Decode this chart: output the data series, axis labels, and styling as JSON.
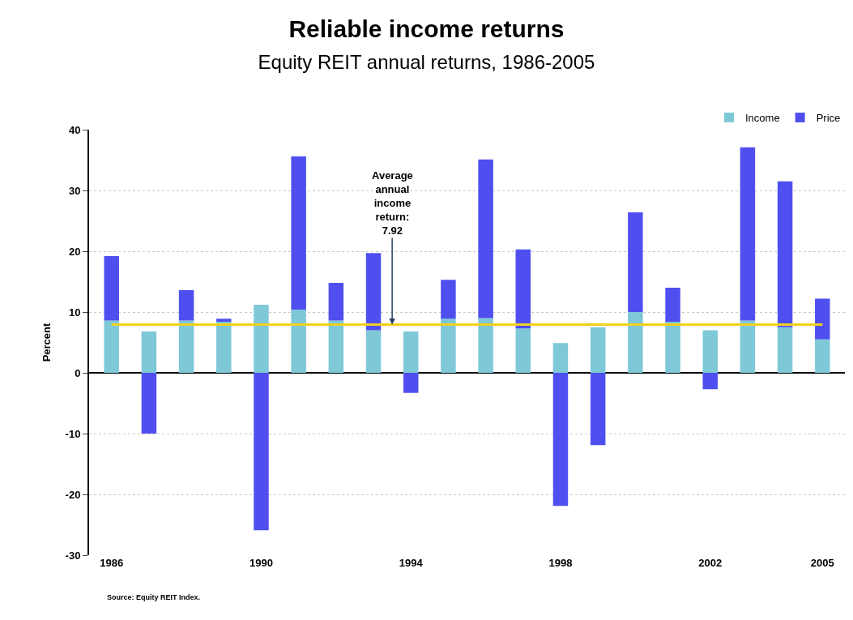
{
  "chart_data": {
    "type": "bar",
    "stacked": true,
    "title": "Reliable income returns",
    "subtitle": "Equity REIT annual returns, 1986-2005",
    "ylabel": "Percent",
    "x": [
      1986,
      1987,
      1988,
      1989,
      1990,
      1991,
      1992,
      1993,
      1994,
      1995,
      1996,
      1997,
      1998,
      1999,
      2000,
      2001,
      2002,
      2003,
      2004,
      2005
    ],
    "series": [
      {
        "name": "Income",
        "color": "#7ec8d8",
        "values": [
          8.6,
          6.8,
          8.6,
          8.4,
          11.2,
          10.4,
          8.6,
          7.0,
          6.8,
          8.9,
          9.0,
          7.3,
          4.9,
          7.5,
          10.0,
          8.4,
          7.0,
          8.6,
          7.5,
          5.5
        ]
      },
      {
        "name": "Price",
        "color": "#4f4ff0",
        "values": [
          10.6,
          -10.0,
          5.0,
          0.5,
          -25.9,
          25.2,
          6.2,
          12.7,
          -3.3,
          6.4,
          26.1,
          13.0,
          -21.9,
          -11.9,
          16.4,
          5.6,
          -2.7,
          28.5,
          24.0,
          6.7
        ]
      }
    ],
    "xlim": [
      1985.4,
      2005.6
    ],
    "xticks": [
      1986,
      1990,
      1994,
      1998,
      2002,
      2005
    ],
    "ylim": [
      -30,
      40
    ],
    "yticks": [
      -30,
      -20,
      -10,
      0,
      10,
      20,
      30,
      40
    ],
    "grid": "y",
    "legend": "top right",
    "ref_lines": [
      {
        "axis": "y",
        "value": 7.92,
        "color": "#f0d020"
      }
    ],
    "annotations": [
      {
        "text": "Average\nannual\nincome\nreturn:\n7.92",
        "x": 1993.5,
        "y": 7.92
      },
      "Source: Equity REIT Index."
    ]
  }
}
